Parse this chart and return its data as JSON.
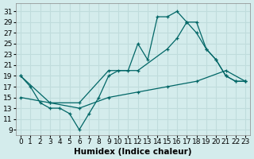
{
  "title": "",
  "xlabel": "Humidex (Indice chaleur)",
  "ylabel": "",
  "bg_color": "#d4ecec",
  "line_color": "#006666",
  "grid_color": "#c0dcdc",
  "x_ticks": [
    0,
    1,
    2,
    3,
    4,
    5,
    6,
    7,
    8,
    9,
    10,
    11,
    12,
    13,
    14,
    15,
    16,
    17,
    18,
    19,
    20,
    21,
    22,
    23
  ],
  "y_ticks": [
    9,
    11,
    13,
    15,
    17,
    19,
    21,
    23,
    25,
    27,
    29,
    31
  ],
  "xlim": [
    -0.5,
    23.5
  ],
  "ylim": [
    8,
    32.5
  ],
  "curve1_x": [
    0,
    1,
    2,
    3,
    4,
    5,
    6,
    7,
    8,
    9,
    10,
    11,
    12,
    13,
    14,
    15,
    16,
    17,
    18,
    19,
    20,
    21,
    22,
    23
  ],
  "curve1_y": [
    19,
    17,
    14,
    13,
    13,
    12,
    9,
    12,
    15,
    19,
    20,
    20,
    25,
    22,
    30,
    30,
    31,
    29,
    29,
    24,
    22,
    19,
    18,
    18
  ],
  "curve2_x": [
    0,
    3,
    6,
    9,
    12,
    15,
    16,
    17,
    18,
    19,
    20,
    21,
    22,
    23
  ],
  "curve2_y": [
    19,
    14,
    14,
    20,
    20,
    24,
    26,
    29,
    27,
    24,
    22,
    19,
    18,
    18
  ],
  "curve3_x": [
    0,
    3,
    6,
    9,
    12,
    15,
    18,
    21,
    23
  ],
  "curve3_y": [
    15,
    14,
    13,
    15,
    16,
    17,
    18,
    20,
    18
  ],
  "tick_fontsize": 6.5,
  "xlabel_fontsize": 7.5
}
